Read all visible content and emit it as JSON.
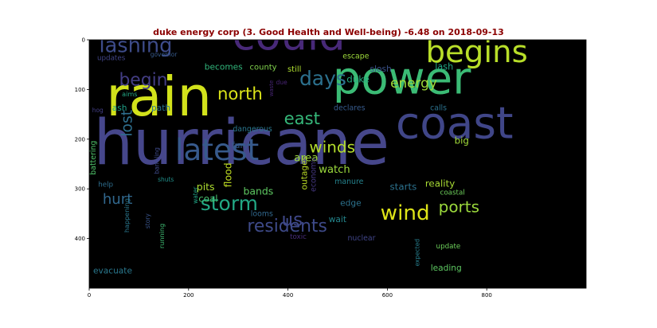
{
  "chart_data": {
    "type": "wordcloud",
    "title": "duke energy corp (3. Good Health and Well-being) -6.48 on 2018-09-13",
    "x_ticks": [
      "0",
      "200",
      "400",
      "600",
      "800"
    ],
    "y_ticks": [
      "0",
      "100",
      "200",
      "300",
      "400"
    ],
    "xlim": [
      0,
      1000
    ],
    "ylim": [
      500,
      0
    ],
    "words": [
      {
        "text": "hurricane",
        "x": 9,
        "y": 250,
        "size": 125,
        "color": "#46478b"
      },
      {
        "text": "rain",
        "x": 34,
        "y": 152,
        "size": 110,
        "color": "#d2e21b"
      },
      {
        "text": "power",
        "x": 490,
        "y": 108,
        "size": 90,
        "color": "#3bbb75"
      },
      {
        "text": "coast",
        "x": 617,
        "y": 198,
        "size": 88,
        "color": "#404688"
      },
      {
        "text": "could",
        "x": 288,
        "y": 20,
        "size": 84,
        "color": "#482979"
      },
      {
        "text": "begins",
        "x": 677,
        "y": 45,
        "size": 62,
        "color": "#b8de29"
      },
      {
        "text": "latest",
        "x": 173,
        "y": 242,
        "size": 60,
        "color": "#375a8c"
      },
      {
        "text": "lashing",
        "x": 20,
        "y": 25,
        "size": 41,
        "color": "#3e4c8a"
      },
      {
        "text": "begin",
        "x": 60,
        "y": 92,
        "size": 35,
        "color": "#433d84"
      },
      {
        "text": "days",
        "x": 423,
        "y": 91,
        "size": 40,
        "color": "#2c718e"
      },
      {
        "text": "north",
        "x": 258,
        "y": 120,
        "size": 34,
        "color": "#dae319"
      },
      {
        "text": "east",
        "x": 392,
        "y": 170,
        "size": 34,
        "color": "#35b779"
      },
      {
        "text": "lost",
        "x": 86,
        "y": 195,
        "size": 30,
        "color": "#2e6f8e",
        "rotate": -90
      },
      {
        "text": "winds",
        "x": 443,
        "y": 227,
        "size": 32,
        "color": "#b4de2c"
      },
      {
        "text": "energy",
        "x": 606,
        "y": 96,
        "size": 27,
        "color": "#9fda3a"
      },
      {
        "text": "duke",
        "x": 518,
        "y": 86,
        "size": 19,
        "color": "#27ad81"
      },
      {
        "text": "area",
        "x": 412,
        "y": 244,
        "size": 22,
        "color": "#9bd93c"
      },
      {
        "text": "watch",
        "x": 462,
        "y": 268,
        "size": 21,
        "color": "#9bd93c"
      },
      {
        "text": "us",
        "x": 387,
        "y": 374,
        "size": 37,
        "color": "#3f4788"
      },
      {
        "text": "storm",
        "x": 224,
        "y": 343,
        "size": 40,
        "color": "#22a884"
      },
      {
        "text": "hurt",
        "x": 27,
        "y": 330,
        "size": 29,
        "color": "#31688e"
      },
      {
        "text": "residents",
        "x": 318,
        "y": 386,
        "size": 35,
        "color": "#3e4a89"
      },
      {
        "text": "wind",
        "x": 586,
        "y": 362,
        "size": 42,
        "color": "#dde318"
      },
      {
        "text": "ports",
        "x": 703,
        "y": 347,
        "size": 32,
        "color": "#9bd93c"
      },
      {
        "text": "bands",
        "x": 310,
        "y": 312,
        "size": 20,
        "color": "#5ec962"
      },
      {
        "text": "pits",
        "x": 216,
        "y": 303,
        "size": 20,
        "color": "#addc30"
      },
      {
        "text": "flood",
        "x": 286,
        "y": 297,
        "size": 20,
        "color": "#c2df23",
        "rotate": -90
      },
      {
        "text": "coal",
        "x": 220,
        "y": 326,
        "size": 19,
        "color": "#4ac16d"
      },
      {
        "text": "outages",
        "x": 438,
        "y": 302,
        "size": 17,
        "color": "#bddf26",
        "rotate": -90
      },
      {
        "text": "economy",
        "x": 456,
        "y": 306,
        "size": 15,
        "color": "#453781",
        "rotate": -90
      },
      {
        "text": "edge",
        "x": 505,
        "y": 334,
        "size": 17,
        "color": "#2c728e"
      },
      {
        "text": "wait",
        "x": 482,
        "y": 367,
        "size": 17,
        "color": "#24878e"
      },
      {
        "text": "nuclear",
        "x": 520,
        "y": 404,
        "size": 15,
        "color": "#404588"
      },
      {
        "text": "toxic",
        "x": 404,
        "y": 401,
        "size": 14,
        "color": "#472c7a"
      },
      {
        "text": "looms",
        "x": 325,
        "y": 355,
        "size": 15,
        "color": "#31688e"
      },
      {
        "text": "manure",
        "x": 494,
        "y": 290,
        "size": 15,
        "color": "#25838e"
      },
      {
        "text": "starts",
        "x": 605,
        "y": 302,
        "size": 19,
        "color": "#2c728e"
      },
      {
        "text": "reality",
        "x": 676,
        "y": 296,
        "size": 19,
        "color": "#a8db34"
      },
      {
        "text": "coastal",
        "x": 706,
        "y": 312,
        "size": 14,
        "color": "#6ccd5a"
      },
      {
        "text": "update",
        "x": 698,
        "y": 420,
        "size": 14,
        "color": "#6ccd5a"
      },
      {
        "text": "leading",
        "x": 687,
        "y": 465,
        "size": 17,
        "color": "#5ec962"
      },
      {
        "text": "expected",
        "x": 664,
        "y": 456,
        "size": 12,
        "color": "#277f8e",
        "rotate": -90
      },
      {
        "text": "evacuate",
        "x": 8,
        "y": 470,
        "size": 17,
        "color": "#2a788e"
      },
      {
        "text": "help",
        "x": 18,
        "y": 296,
        "size": 14,
        "color": "#2e6e8e"
      },
      {
        "text": "happening",
        "x": 80,
        "y": 388,
        "size": 13,
        "color": "#2a778e",
        "rotate": -90
      },
      {
        "text": "story",
        "x": 122,
        "y": 380,
        "size": 12,
        "color": "#39558c",
        "rotate": -90
      },
      {
        "text": "running",
        "x": 151,
        "y": 420,
        "size": 13,
        "color": "#3fbc73",
        "rotate": -90
      },
      {
        "text": "battering",
        "x": 13,
        "y": 272,
        "size": 15,
        "color": "#50c46a",
        "rotate": -90
      },
      {
        "text": "barreling",
        "x": 140,
        "y": 270,
        "size": 12,
        "color": "#3e4a89",
        "rotate": -90
      },
      {
        "text": "shuts",
        "x": 138,
        "y": 285,
        "size": 12,
        "color": "#21918c"
      },
      {
        "text": "water",
        "x": 218,
        "y": 330,
        "size": 12,
        "color": "#20a386",
        "rotate": -90
      },
      {
        "text": "fury",
        "x": 287,
        "y": 218,
        "size": 17,
        "color": "#375b8d"
      },
      {
        "text": "dangerous",
        "x": 289,
        "y": 184,
        "size": 15,
        "color": "#2a778e"
      },
      {
        "text": "path",
        "x": 125,
        "y": 143,
        "size": 17,
        "color": "#2b758e"
      },
      {
        "text": "ash",
        "x": 46,
        "y": 143,
        "size": 17,
        "color": "#1fa188"
      },
      {
        "text": "becomes",
        "x": 232,
        "y": 60,
        "size": 17,
        "color": "#31b57b"
      },
      {
        "text": "county",
        "x": 323,
        "y": 60,
        "size": 16,
        "color": "#81d34d"
      },
      {
        "text": "still",
        "x": 399,
        "y": 64,
        "size": 16,
        "color": "#addc30"
      },
      {
        "text": "escape",
        "x": 510,
        "y": 38,
        "size": 15,
        "color": "#9dd93b"
      },
      {
        "text": "slosh",
        "x": 565,
        "y": 64,
        "size": 17,
        "color": "#3b528b"
      },
      {
        "text": "lash",
        "x": 696,
        "y": 60,
        "size": 18,
        "color": "#21a585"
      },
      {
        "text": "governor",
        "x": 123,
        "y": 34,
        "size": 12,
        "color": "#375b8d"
      },
      {
        "text": "updates",
        "x": 16,
        "y": 41,
        "size": 14,
        "color": "#414487"
      },
      {
        "text": "aims",
        "x": 66,
        "y": 114,
        "size": 13,
        "color": "#22a785"
      },
      {
        "text": "hog",
        "x": 6,
        "y": 146,
        "size": 12,
        "color": "#433e85"
      },
      {
        "text": "waste",
        "x": 370,
        "y": 114,
        "size": 11,
        "color": "#482677",
        "rotate": -90
      },
      {
        "text": "due",
        "x": 376,
        "y": 90,
        "size": 12,
        "color": "#482475"
      },
      {
        "text": "declares",
        "x": 492,
        "y": 142,
        "size": 15,
        "color": "#375b8d"
      },
      {
        "text": "calls",
        "x": 686,
        "y": 142,
        "size": 15,
        "color": "#2c728e"
      },
      {
        "text": "big",
        "x": 735,
        "y": 209,
        "size": 19,
        "color": "#a0da39"
      }
    ]
  }
}
